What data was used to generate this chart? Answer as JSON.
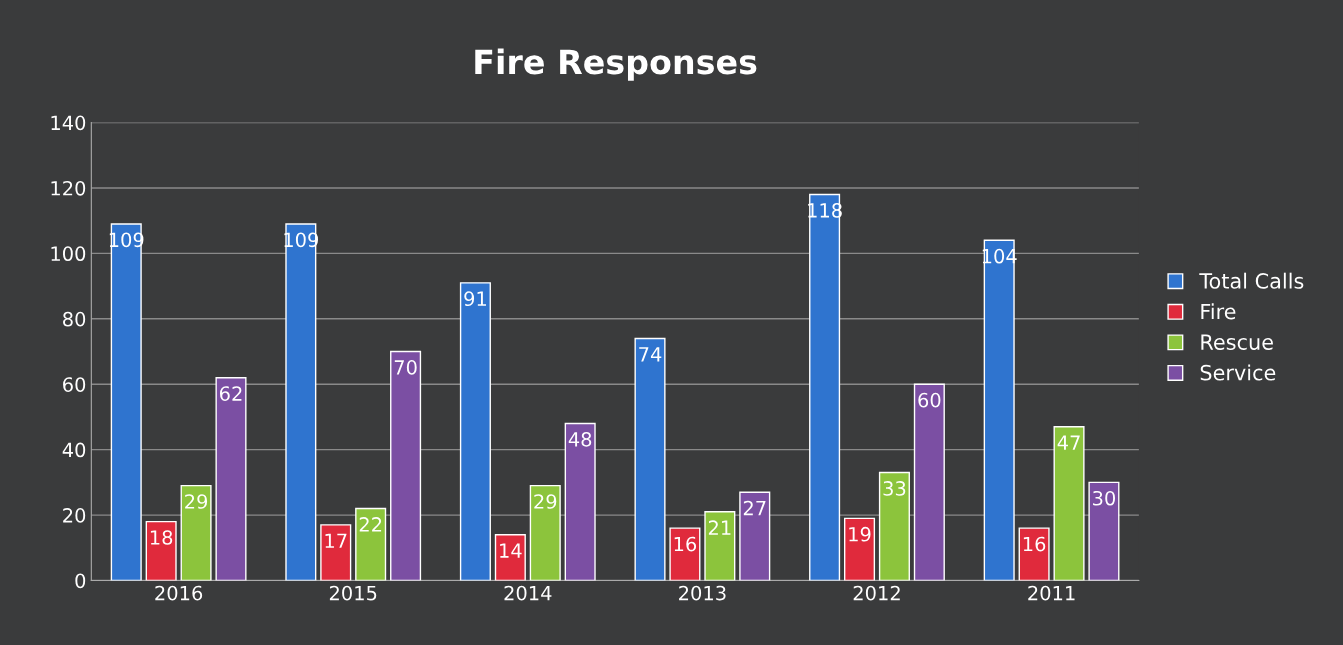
{
  "chart_data": {
    "type": "bar",
    "title": "Fire Responses",
    "categories": [
      "2016",
      "2015",
      "2014",
      "2013",
      "2012",
      "2011"
    ],
    "series": [
      {
        "name": "Total Calls",
        "color": "#2f74cf",
        "values": [
          109,
          109,
          91,
          74,
          118,
          104
        ]
      },
      {
        "name": "Fire",
        "color": "#e02a3c",
        "values": [
          18,
          17,
          14,
          16,
          19,
          16
        ]
      },
      {
        "name": "Rescue",
        "color": "#8cc43c",
        "values": [
          29,
          22,
          29,
          21,
          33,
          47
        ]
      },
      {
        "name": "Service",
        "color": "#7b4fa3",
        "values": [
          62,
          70,
          48,
          27,
          60,
          30
        ]
      }
    ],
    "ylim": [
      0,
      140
    ],
    "yticks": [
      0,
      20,
      40,
      60,
      80,
      100,
      120,
      140
    ],
    "grid": "y",
    "legend": "right",
    "data_labels": true
  }
}
